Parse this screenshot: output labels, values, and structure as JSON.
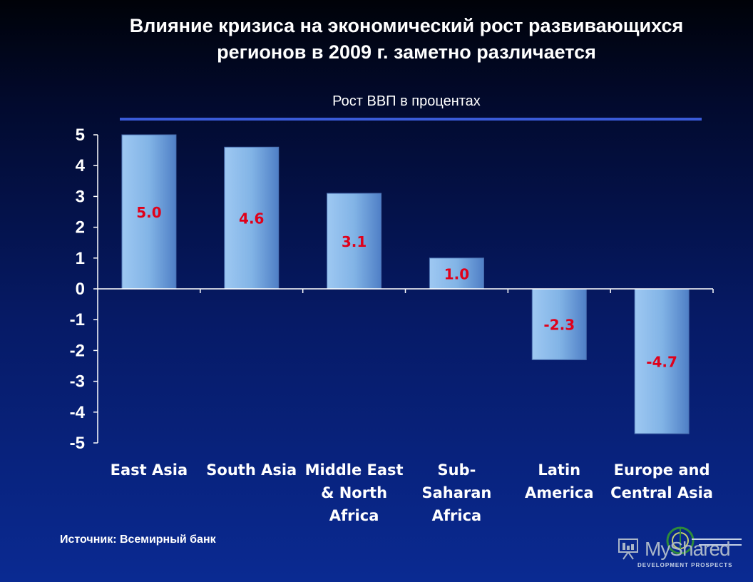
{
  "title": "Влияние кризиса на экономический рост развивающихся регионов в 2009 г. заметно различается",
  "subtitle": "Рост ВВП в процентах",
  "source": "Источник: Всемирный банк",
  "logo": {
    "text": "MyShared",
    "subtitle": "DEVELOPMENT PROSPECTS"
  },
  "chart_data": {
    "type": "bar",
    "title": "Влияние кризиса на экономический рост развивающихся регионов в 2009 г. заметно различается",
    "ylabel": "",
    "ylim": [
      -5,
      5
    ],
    "yticks": [
      "5",
      "4",
      "3",
      "2",
      "1",
      "0",
      "-1",
      "-2",
      "-3",
      "-4",
      "-5"
    ],
    "categories": [
      [
        "East Asia"
      ],
      [
        "South Asia"
      ],
      [
        "Middle East",
        "& North",
        "Africa"
      ],
      [
        "Sub-",
        "Saharan",
        "Africa"
      ],
      [
        "Latin",
        "America"
      ],
      [
        "Europe and",
        "Central Asia"
      ]
    ],
    "values": [
      5.0,
      4.6,
      3.1,
      1.0,
      -2.3,
      -4.7
    ],
    "data_labels": [
      "5.0",
      "4.6",
      "3.1",
      "1.0",
      "-2.3",
      "-4.7"
    ],
    "colors": {
      "bar": "#7fb2e8",
      "label": "#e0001a",
      "axis": "#ffffff",
      "text": "#ffffff"
    },
    "grid": false,
    "legend": "none"
  }
}
